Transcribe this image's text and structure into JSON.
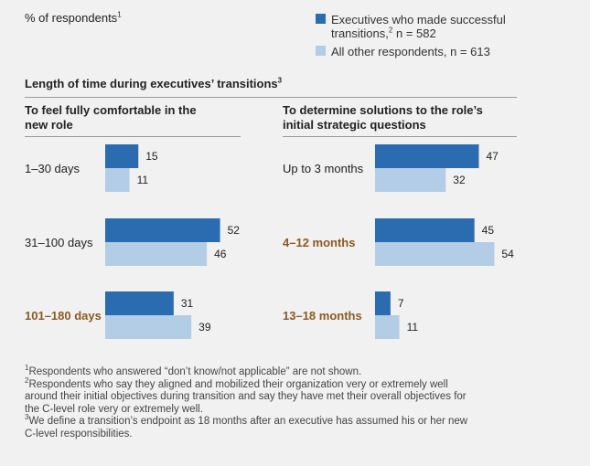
{
  "unit_label": "% of respondents",
  "unit_sup": "1",
  "legend": [
    {
      "text": "Executives who made successful transitions,",
      "sup": "2",
      "tail": " n = 582",
      "color": "#2b6cb0"
    },
    {
      "text": "All other respondents, n = 613",
      "sup": "",
      "tail": "",
      "color": "#b3cde6"
    }
  ],
  "section_title": "Length of time during executives’ transitions",
  "section_sup": "3",
  "chart_data": [
    {
      "type": "bar",
      "orientation": "horizontal",
      "title": "To feel fully comfortable in the new role",
      "categories": [
        "1–30 days",
        "31–100 days",
        "101–180 days"
      ],
      "highlighted": [
        false,
        false,
        true
      ],
      "series": [
        {
          "name": "Executives who made successful transitions",
          "values": [
            15,
            52,
            31
          ]
        },
        {
          "name": "All other respondents",
          "values": [
            11,
            46,
            39
          ]
        }
      ]
    },
    {
      "type": "bar",
      "orientation": "horizontal",
      "title": "To determine solutions to the role’s initial strategic questions",
      "categories": [
        "Up to 3 months",
        "4–12 months",
        "13–18 months"
      ],
      "highlighted": [
        false,
        true,
        true
      ],
      "series": [
        {
          "name": "Executives who made successful transitions",
          "values": [
            47,
            45,
            7
          ]
        },
        {
          "name": "All other respondents",
          "values": [
            32,
            54,
            11
          ]
        }
      ]
    }
  ],
  "colors": {
    "primary": "#2b6cb0",
    "secondary": "#b3cde6",
    "highlight_text": "#8a5a22"
  },
  "footnotes": [
    {
      "sup": "1",
      "lines": [
        "Respondents who answered “don’t know/not applicable” are not shown."
      ]
    },
    {
      "sup": "2",
      "lines": [
        "Respondents who say they aligned and mobilized their organization very or extremely well",
        "around their initial objectives during transition and say they have met their overall objectives for",
        "the C-level role very or extremely well."
      ]
    },
    {
      "sup": "3",
      "lines": [
        "We define a transition’s endpoint as 18 months after an executive has assumed his or her new",
        "C-level responsibilities."
      ]
    }
  ]
}
